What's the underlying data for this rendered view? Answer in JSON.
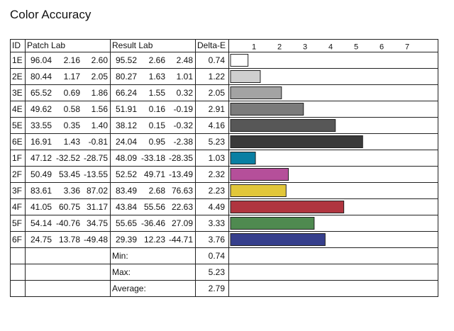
{
  "title": "Color Accuracy",
  "headers": {
    "id": "ID",
    "patch": "Patch Lab",
    "result": "Result Lab",
    "delta": "Delta-E"
  },
  "rows": [
    {
      "id": "1E",
      "patch": [
        "96.04",
        "2.16",
        "2.60"
      ],
      "result": [
        "95.52",
        "2.66",
        "2.48"
      ],
      "delta": "0.74",
      "color": "#ffffff"
    },
    {
      "id": "2E",
      "patch": [
        "80.44",
        "1.17",
        "2.05"
      ],
      "result": [
        "80.27",
        "1.63",
        "1.01"
      ],
      "delta": "1.22",
      "color": "#cfcfcf"
    },
    {
      "id": "3E",
      "patch": [
        "65.52",
        "0.69",
        "1.86"
      ],
      "result": [
        "66.24",
        "1.55",
        "0.32"
      ],
      "delta": "2.05",
      "color": "#a3a3a3"
    },
    {
      "id": "4E",
      "patch": [
        "49.62",
        "0.58",
        "1.56"
      ],
      "result": [
        "51.91",
        "0.16",
        "-0.19"
      ],
      "delta": "2.91",
      "color": "#7b7b7b"
    },
    {
      "id": "5E",
      "patch": [
        "33.55",
        "0.35",
        "1.40"
      ],
      "result": [
        "38.12",
        "0.15",
        "-0.32"
      ],
      "delta": "4.16",
      "color": "#575757"
    },
    {
      "id": "6E",
      "patch": [
        "16.91",
        "1.43",
        "-0.81"
      ],
      "result": [
        "24.04",
        "0.95",
        "-2.38"
      ],
      "delta": "5.23",
      "color": "#3a3a3a"
    },
    {
      "id": "1F",
      "patch": [
        "47.12",
        "-32.52",
        "-28.75"
      ],
      "result": [
        "48.09",
        "-33.18",
        "-28.35"
      ],
      "delta": "1.03",
      "color": "#0a7fa3"
    },
    {
      "id": "2F",
      "patch": [
        "50.49",
        "53.45",
        "-13.55"
      ],
      "result": [
        "52.52",
        "49.71",
        "-13.49"
      ],
      "delta": "2.32",
      "color": "#b54f9a"
    },
    {
      "id": "3F",
      "patch": [
        "83.61",
        "3.36",
        "87.02"
      ],
      "result": [
        "83.49",
        "2.68",
        "76.63"
      ],
      "delta": "2.23",
      "color": "#e2c73a"
    },
    {
      "id": "4F",
      "patch": [
        "41.05",
        "60.75",
        "31.17"
      ],
      "result": [
        "43.84",
        "55.56",
        "22.63"
      ],
      "delta": "4.49",
      "color": "#b0353f"
    },
    {
      "id": "5F",
      "patch": [
        "54.14",
        "-40.76",
        "34.75"
      ],
      "result": [
        "55.65",
        "-36.46",
        "27.09"
      ],
      "delta": "3.33",
      "color": "#4f8a50"
    },
    {
      "id": "6F",
      "patch": [
        "24.75",
        "13.78",
        "-49.48"
      ],
      "result": [
        "29.39",
        "12.23",
        "-44.71"
      ],
      "delta": "3.76",
      "color": "#363f8c"
    }
  ],
  "summary": [
    {
      "label": "Min:",
      "value": "0.74"
    },
    {
      "label": "Max:",
      "value": "5.23"
    },
    {
      "label": "Average:",
      "value": "2.79"
    }
  ],
  "chart_data": {
    "type": "bar",
    "orientation": "horizontal",
    "categories": [
      "1E",
      "2E",
      "3E",
      "4E",
      "5E",
      "6E",
      "1F",
      "2F",
      "3F",
      "4F",
      "5F",
      "6F"
    ],
    "values": [
      0.74,
      1.22,
      2.05,
      2.91,
      4.16,
      5.23,
      1.03,
      2.32,
      2.23,
      4.49,
      3.33,
      3.76
    ],
    "xlim": [
      0,
      8
    ],
    "tick_labels": [
      "1",
      "2",
      "3",
      "4",
      "5",
      "6",
      "7"
    ],
    "colors": [
      "#ffffff",
      "#cfcfcf",
      "#a3a3a3",
      "#7b7b7b",
      "#575757",
      "#3a3a3a",
      "#0a7fa3",
      "#b54f9a",
      "#e2c73a",
      "#b0353f",
      "#4f8a50",
      "#363f8c"
    ],
    "grid": false
  }
}
